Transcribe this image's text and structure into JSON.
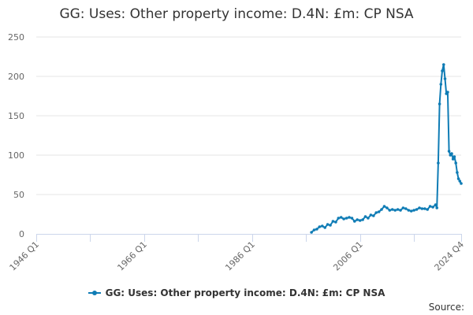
{
  "chart_data": {
    "type": "line",
    "title": "GG: Uses: Other property income: D.4N: £m: CP NSA",
    "xlabel": "",
    "ylabel": "",
    "x_range": [
      "1946 Q1",
      "2024 Q4"
    ],
    "ylim": [
      0,
      250
    ],
    "y_ticks": [
      0,
      50,
      100,
      150,
      200,
      250
    ],
    "x_tick_labels": [
      "1946 Q1",
      "1966 Q1",
      "1986 Q1",
      "2006 Q1",
      "2024 Q4"
    ],
    "grid": true,
    "legend_position": "bottom",
    "color": "#0f7cb5",
    "series": [
      {
        "name": "GG: Uses: Other property income: D.4N: £m: CP NSA",
        "points": [
          [
            "1997 Q1",
            2
          ],
          [
            "1997 Q3",
            5
          ],
          [
            "1998 Q1",
            6
          ],
          [
            "1998 Q3",
            9
          ],
          [
            "1999 Q1",
            10
          ],
          [
            "1999 Q3",
            8
          ],
          [
            "2000 Q1",
            12
          ],
          [
            "2000 Q3",
            11
          ],
          [
            "2001 Q1",
            16
          ],
          [
            "2001 Q3",
            15
          ],
          [
            "2002 Q1",
            20
          ],
          [
            "2002 Q3",
            21
          ],
          [
            "2003 Q1",
            19
          ],
          [
            "2003 Q3",
            20
          ],
          [
            "2004 Q1",
            21
          ],
          [
            "2004 Q3",
            20
          ],
          [
            "2005 Q1",
            16
          ],
          [
            "2005 Q3",
            18
          ],
          [
            "2006 Q1",
            17
          ],
          [
            "2006 Q3",
            18
          ],
          [
            "2007 Q1",
            22
          ],
          [
            "2007 Q3",
            20
          ],
          [
            "2008 Q1",
            24
          ],
          [
            "2008 Q3",
            23
          ],
          [
            "2009 Q1",
            27
          ],
          [
            "2009 Q3",
            28
          ],
          [
            "2010 Q1",
            31
          ],
          [
            "2010 Q3",
            35
          ],
          [
            "2011 Q1",
            33
          ],
          [
            "2011 Q3",
            30
          ],
          [
            "2012 Q1",
            31
          ],
          [
            "2012 Q3",
            30
          ],
          [
            "2013 Q1",
            31
          ],
          [
            "2013 Q3",
            30
          ],
          [
            "2014 Q1",
            33
          ],
          [
            "2014 Q3",
            32
          ],
          [
            "2015 Q1",
            30
          ],
          [
            "2015 Q3",
            29
          ],
          [
            "2016 Q1",
            30
          ],
          [
            "2016 Q3",
            31
          ],
          [
            "2017 Q1",
            33
          ],
          [
            "2017 Q3",
            32
          ],
          [
            "2018 Q1",
            32
          ],
          [
            "2018 Q3",
            31
          ],
          [
            "2019 Q1",
            35
          ],
          [
            "2019 Q3",
            34
          ],
          [
            "2020 Q1",
            37
          ],
          [
            "2020 Q2",
            33
          ],
          [
            "2020 Q3",
            90
          ],
          [
            "2020 Q4",
            165
          ],
          [
            "2021 Q1",
            190
          ],
          [
            "2021 Q2",
            207
          ],
          [
            "2021 Q3",
            215
          ],
          [
            "2021 Q4",
            197
          ],
          [
            "2022 Q1",
            178
          ],
          [
            "2022 Q2",
            180
          ],
          [
            "2022 Q3",
            105
          ],
          [
            "2022 Q4",
            100
          ],
          [
            "2023 Q1",
            102
          ],
          [
            "2023 Q2",
            95
          ],
          [
            "2023 Q3",
            98
          ],
          [
            "2023 Q4",
            90
          ],
          [
            "2024 Q1",
            78
          ],
          [
            "2024 Q2",
            70
          ],
          [
            "2024 Q3",
            67
          ],
          [
            "2024 Q4",
            64
          ]
        ]
      }
    ]
  },
  "source_label": "Source:"
}
